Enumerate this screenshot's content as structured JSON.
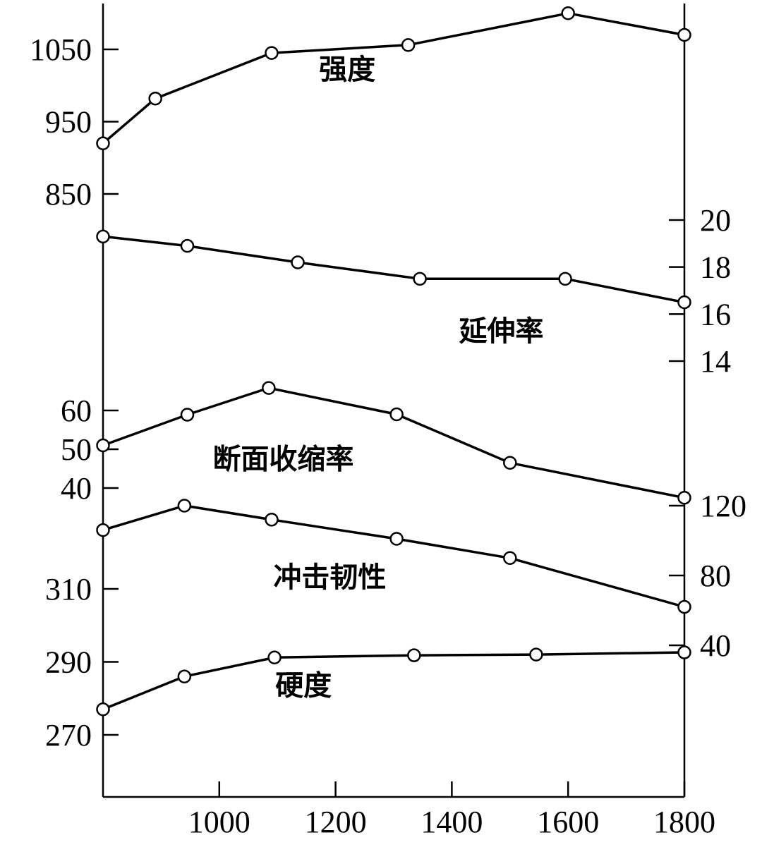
{
  "chart_data": {
    "type": "line",
    "title": "",
    "xlabel": "",
    "ylabel": "",
    "grid": false,
    "x_axis": {
      "ticks": [
        1000,
        1200,
        1400,
        1600,
        1800
      ],
      "range": [
        800,
        1800
      ]
    },
    "series": [
      {
        "name": "强度",
        "axis": "left",
        "x": [
          800,
          890,
          1090,
          1325,
          1600,
          1800
        ],
        "y": [
          920,
          982,
          1045,
          1056,
          1100,
          1070
        ],
        "label_at": [
          1220,
          1020
        ]
      },
      {
        "name": "延伸率",
        "axis": "right",
        "x": [
          800,
          945,
          1135,
          1345,
          1595,
          1800
        ],
        "y": [
          19.3,
          18.9,
          18.2,
          17.5,
          17.5,
          16.5
        ],
        "label_at": [
          1485,
          15.2
        ]
      },
      {
        "name": "断面收缩率",
        "axis": "left",
        "x": [
          800,
          945,
          1085,
          1305,
          1500,
          1800
        ],
        "y": [
          51,
          58.9,
          65.8,
          59,
          46.5,
          37.5
        ],
        "label_at": [
          1110,
          47
        ]
      },
      {
        "name": "冲击韧性",
        "axis": "right",
        "x": [
          800,
          940,
          1090,
          1305,
          1500,
          1800
        ],
        "y": [
          106,
          120,
          112,
          101,
          90,
          62
        ],
        "label_at": [
          1190,
          78
        ]
      },
      {
        "name": "硬度",
        "axis": "left",
        "x": [
          800,
          940,
          1095,
          1335,
          1545,
          1800
        ],
        "y": [
          277,
          286,
          291.2,
          291.8,
          292,
          292.6
        ],
        "label_at": [
          1145,
          283
        ]
      }
    ],
    "left_axis_groups": [
      {
        "ticks": [
          850,
          950,
          1050
        ]
      },
      {
        "ticks": [
          40,
          50,
          60
        ]
      },
      {
        "ticks": [
          270,
          290,
          310
        ]
      }
    ],
    "right_axis_groups": [
      {
        "ticks": [
          14,
          16,
          18,
          20
        ]
      },
      {
        "ticks": [
          40,
          80,
          120
        ]
      }
    ]
  }
}
